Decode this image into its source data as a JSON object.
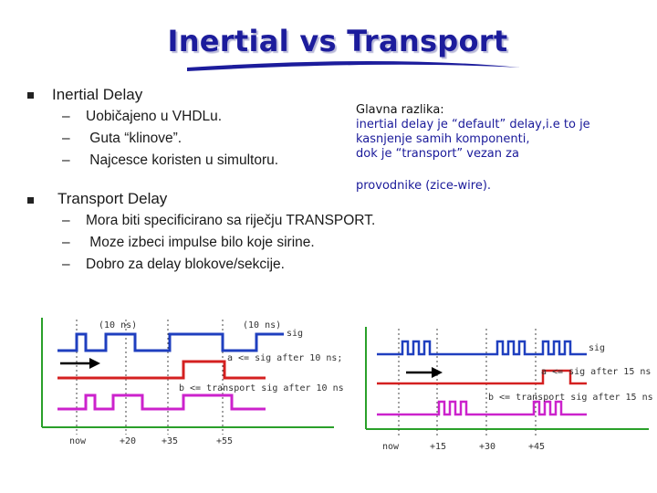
{
  "title": "Inertial vs Transport",
  "inertial": {
    "heading": "Inertial Delay",
    "items": [
      "Uobičajeno u VHDLu.",
      " Guta “klinove”.",
      " Najcesce koristen u simultoru."
    ]
  },
  "transport": {
    "heading": "Transport Delay",
    "items": [
      "Mora biti specificirano sa riječju TRANSPORT.",
      " Moze izbeci impulse bilo koje sirine.",
      "Dobro za  delay blokove/sekcije."
    ]
  },
  "note": {
    "heading": "Glavna razlika:",
    "lines": [
      "inertial delay je “default” delay,i.e to je",
      "kasnjenje samih komponenti,",
      "dok je “transport” vezan za",
      "provodnike  (zice-wire)."
    ]
  },
  "wave_left": {
    "labels": {
      "top1": "(10 ns)",
      "top2": "(10 ns)",
      "sig": "sig",
      "a": "a <= sig after 10 ns;",
      "b": "b <= transport sig after 10 ns;"
    },
    "ticks": [
      "now",
      "+20",
      "+35",
      "+55"
    ]
  },
  "wave_right": {
    "labels": {
      "sig": "sig",
      "a": "a <= sig after 15 ns;",
      "b": "b <= transport sig after 15 ns;"
    },
    "ticks": [
      "now",
      "+15",
      "+30",
      "+45"
    ]
  },
  "colors": {
    "title": "#1c1c9c",
    "sig": "#1f3fbf",
    "a": "#d42020",
    "b": "#cc22cc",
    "axis": "#2aa02a"
  }
}
